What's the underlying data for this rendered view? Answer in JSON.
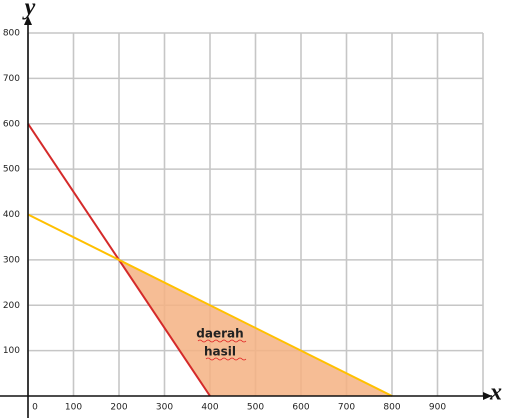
{
  "chart_data": {
    "type": "line",
    "x_label": "x",
    "y_label": "y",
    "xlim": [
      0,
      1000
    ],
    "ylim": [
      0,
      800
    ],
    "xticks": [
      0,
      100,
      200,
      300,
      400,
      500,
      600,
      700,
      800,
      900
    ],
    "yticks": [
      100,
      200,
      300,
      400,
      500,
      600,
      700,
      800
    ],
    "grid": true,
    "series": [
      {
        "color": "#d42a2a",
        "x": [
          0,
          400
        ],
        "values": [
          600,
          0
        ]
      },
      {
        "color": "#ffc000",
        "x": [
          0,
          800
        ],
        "values": [
          400,
          0
        ]
      }
    ],
    "region": {
      "color": "#f4b183",
      "x": [
        200,
        800,
        400
      ],
      "values": [
        300,
        0,
        0
      ]
    },
    "annotation": [
      "daerah",
      "hasil"
    ]
  }
}
